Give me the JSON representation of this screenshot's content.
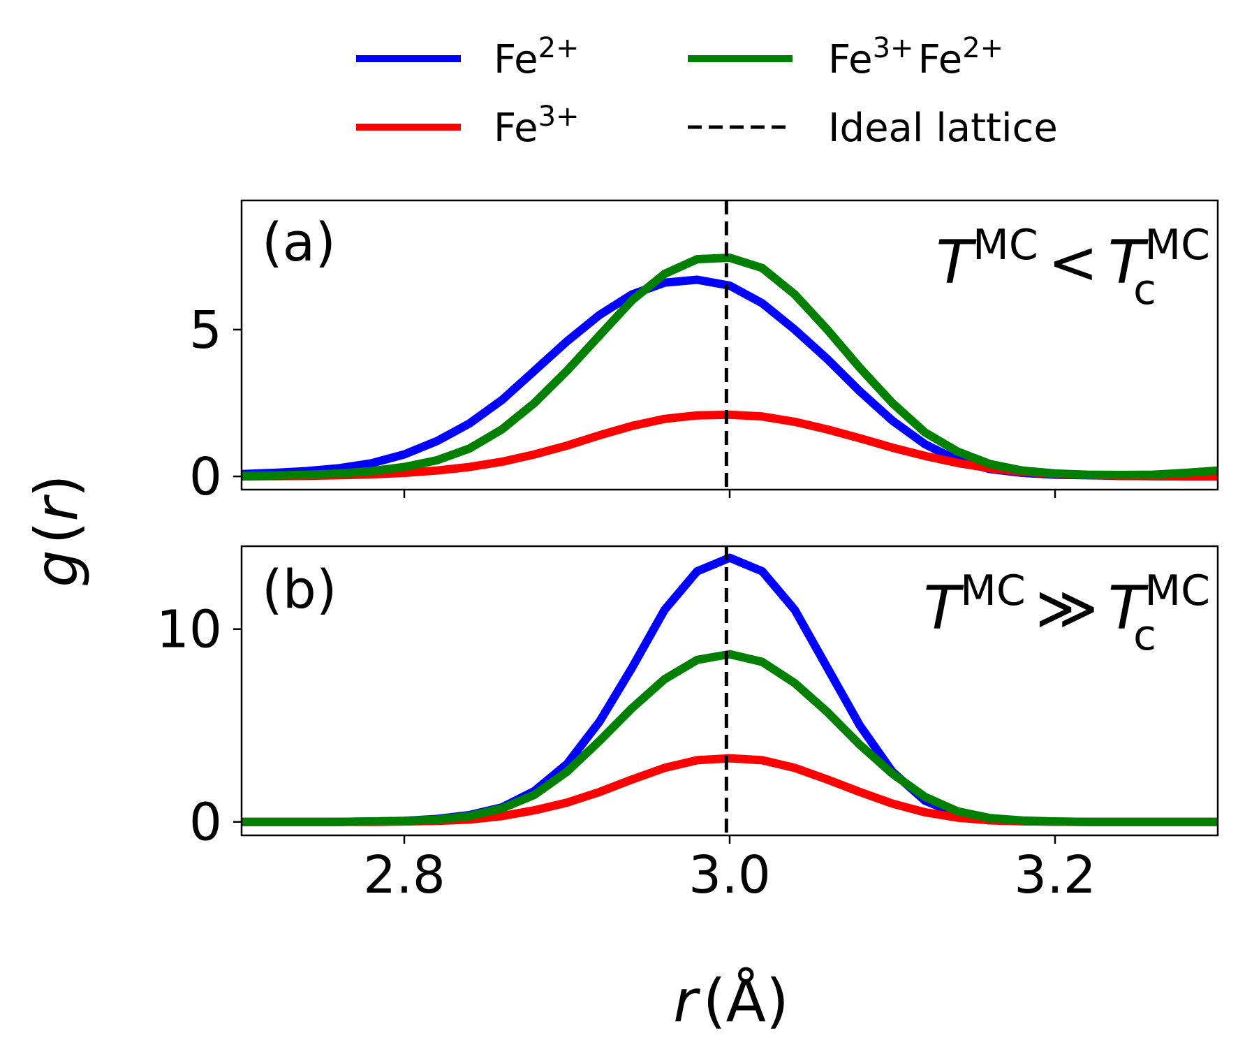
{
  "legend": {
    "items": [
      {
        "base": "Fe",
        "sup": "2+",
        "color": "#0000ff",
        "style": "solid"
      },
      {
        "base": "Fe",
        "sup": "3+",
        "color": "#ff0000",
        "style": "solid"
      },
      {
        "base": "Fe",
        "sup": "3+",
        "base2": "Fe",
        "sup2": "2+",
        "color": "#008000",
        "style": "solid"
      },
      {
        "text": "Ideal lattice",
        "color": "#000000",
        "style": "dashed"
      }
    ]
  },
  "ylabel": {
    "main": "g",
    "open": "(",
    "var": "r",
    "close": ")"
  },
  "xlabel": {
    "var": "r",
    "unit": "(Å)"
  },
  "chart_data": [
    {
      "type": "line",
      "panel_label": "(a)",
      "annotation": {
        "T": "T",
        "sup1": "MC",
        "rel": "<",
        "T2": "T",
        "sub2": "c",
        "sup2": "MC"
      },
      "xlim": [
        2.7,
        3.3
      ],
      "ylim": [
        -0.45,
        9.4
      ],
      "x_ticks": [
        2.8,
        3.0,
        3.2
      ],
      "y_ticks": [
        0,
        5
      ],
      "y_tick_labels": [
        "0",
        "5"
      ],
      "ideal_lattice_x": 2.998,
      "x": [
        2.7,
        2.72,
        2.74,
        2.76,
        2.78,
        2.8,
        2.82,
        2.84,
        2.86,
        2.88,
        2.9,
        2.92,
        2.94,
        2.96,
        2.98,
        3.0,
        3.02,
        3.04,
        3.06,
        3.08,
        3.1,
        3.12,
        3.14,
        3.16,
        3.18,
        3.2,
        3.22,
        3.24,
        3.26,
        3.28,
        3.3
      ],
      "series": [
        {
          "name": "Fe2+",
          "color": "#0000ff",
          "values": [
            0.08,
            0.12,
            0.18,
            0.28,
            0.45,
            0.75,
            1.2,
            1.8,
            2.6,
            3.6,
            4.6,
            5.5,
            6.2,
            6.6,
            6.7,
            6.5,
            5.9,
            5.0,
            4.0,
            2.9,
            1.9,
            1.1,
            0.55,
            0.25,
            0.12,
            0.06,
            0.04,
            0.02,
            0.01,
            0.0,
            0.0
          ]
        },
        {
          "name": "Fe3+",
          "color": "#ff0000",
          "values": [
            0.0,
            0.01,
            0.02,
            0.04,
            0.07,
            0.12,
            0.2,
            0.32,
            0.5,
            0.75,
            1.05,
            1.4,
            1.72,
            1.96,
            2.08,
            2.1,
            2.04,
            1.86,
            1.6,
            1.3,
            0.98,
            0.7,
            0.46,
            0.28,
            0.16,
            0.09,
            0.05,
            0.02,
            0.01,
            0.0,
            0.0
          ]
        },
        {
          "name": "Fe3+Fe2+",
          "color": "#008000",
          "values": [
            0.02,
            0.03,
            0.06,
            0.1,
            0.18,
            0.32,
            0.55,
            0.95,
            1.6,
            2.5,
            3.6,
            4.8,
            6.0,
            6.9,
            7.4,
            7.45,
            7.1,
            6.2,
            5.0,
            3.7,
            2.5,
            1.5,
            0.85,
            0.42,
            0.2,
            0.1,
            0.06,
            0.05,
            0.06,
            0.12,
            0.2
          ]
        }
      ]
    },
    {
      "type": "line",
      "panel_label": "(b)",
      "annotation": {
        "T": "T",
        "sup1": "MC",
        "rel": "≫",
        "T2": "T",
        "sub2": "c",
        "sup2": "MC"
      },
      "xlim": [
        2.7,
        3.3
      ],
      "ylim": [
        -0.7,
        14.3
      ],
      "x_ticks": [
        2.8,
        3.0,
        3.2
      ],
      "x_tick_labels": [
        "2.8",
        "3.0",
        "3.2"
      ],
      "y_ticks": [
        0,
        10
      ],
      "y_tick_labels": [
        "0",
        "10"
      ],
      "ideal_lattice_x": 2.998,
      "x": [
        2.7,
        2.72,
        2.74,
        2.76,
        2.78,
        2.8,
        2.82,
        2.84,
        2.86,
        2.88,
        2.9,
        2.92,
        2.94,
        2.96,
        2.98,
        3.0,
        3.02,
        3.04,
        3.06,
        3.08,
        3.1,
        3.12,
        3.14,
        3.16,
        3.18,
        3.2,
        3.22,
        3.24,
        3.26,
        3.28,
        3.3
      ],
      "series": [
        {
          "name": "Fe2+",
          "color": "#0000ff",
          "values": [
            0.0,
            0.0,
            0.0,
            0.0,
            0.02,
            0.05,
            0.15,
            0.35,
            0.75,
            1.6,
            3.0,
            5.2,
            8.0,
            11.0,
            13.0,
            13.7,
            13.0,
            11.0,
            8.0,
            5.0,
            2.6,
            1.1,
            0.4,
            0.12,
            0.04,
            0.01,
            0.0,
            0.0,
            0.0,
            0.0,
            0.0
          ]
        },
        {
          "name": "Fe3+",
          "color": "#ff0000",
          "values": [
            0.0,
            0.0,
            0.0,
            0.0,
            0.0,
            0.02,
            0.05,
            0.12,
            0.3,
            0.6,
            1.0,
            1.55,
            2.2,
            2.8,
            3.2,
            3.3,
            3.2,
            2.8,
            2.2,
            1.55,
            0.95,
            0.5,
            0.22,
            0.08,
            0.03,
            0.01,
            0.0,
            0.0,
            0.0,
            0.0,
            0.0
          ]
        },
        {
          "name": "Fe3+Fe2+",
          "color": "#008000",
          "values": [
            0.0,
            0.0,
            0.0,
            0.0,
            0.02,
            0.05,
            0.12,
            0.3,
            0.7,
            1.4,
            2.6,
            4.2,
            5.9,
            7.4,
            8.4,
            8.7,
            8.3,
            7.2,
            5.7,
            4.0,
            2.5,
            1.3,
            0.55,
            0.2,
            0.07,
            0.02,
            0.0,
            0.0,
            0.0,
            0.0,
            0.0
          ]
        }
      ]
    }
  ]
}
